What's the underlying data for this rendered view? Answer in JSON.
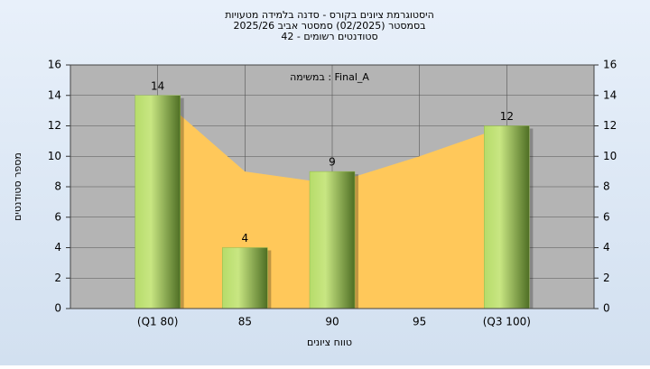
{
  "chart_data": {
    "type": "bar",
    "title": [
      "היסטוגרמת ציונים בקורס - סדנה בלמידה מטעויות",
      "בסמסטר  (02/2025)  סמסטר אביב 2025/26",
      "סטודנטים רשומים - 42"
    ],
    "annotation": "במשימה : Final_A",
    "x_label": "טווח ציונים",
    "y_label": "מספר סטודנטים",
    "categories": [
      "(Q1 80)",
      "85",
      "90",
      "95",
      "(Q3 100)"
    ],
    "series": [
      {
        "type": "bar",
        "color": "#8fb84a",
        "values": [
          14,
          4,
          9,
          null,
          12
        ]
      },
      {
        "type": "area",
        "color": "#ffc85a",
        "values": [
          14,
          9,
          8.2,
          10,
          12
        ]
      }
    ],
    "ylim": [
      0,
      16
    ],
    "yticks": [
      0,
      2,
      4,
      6,
      8,
      10,
      12,
      14,
      16
    ],
    "grid": true
  }
}
